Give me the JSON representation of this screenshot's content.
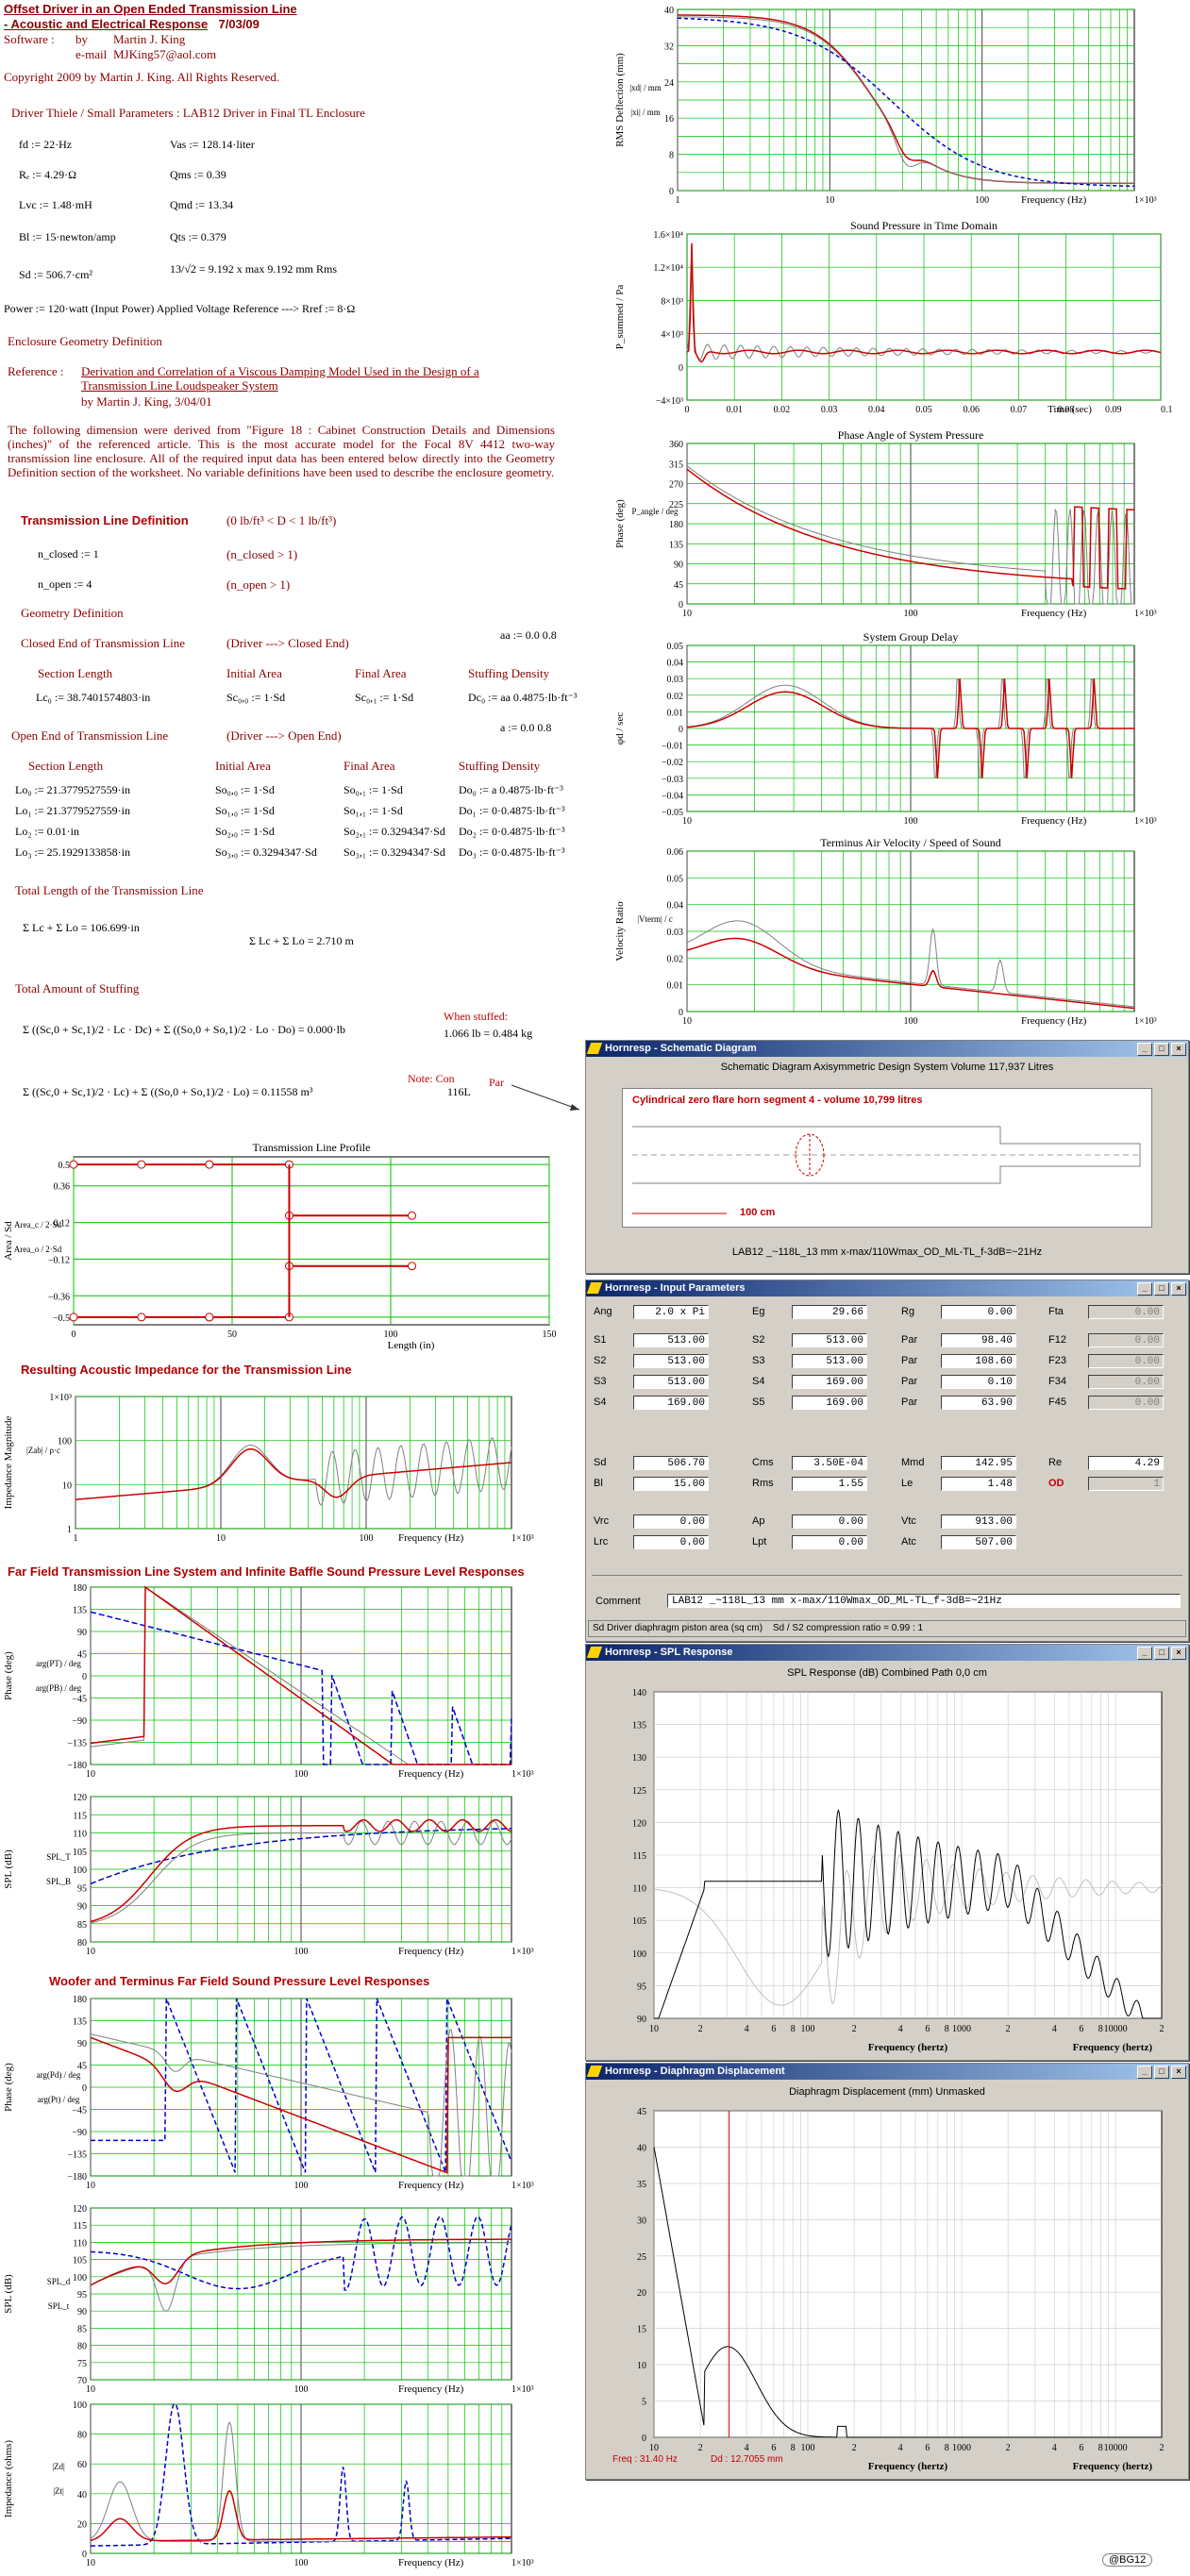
{
  "header": {
    "title_line1": "Offset Driver in an Open Ended Transmission Line",
    "title_line2": " - Acoustic and Electrical Response",
    "date": "7/03/09",
    "software_label": "Software :",
    "by": "by",
    "author": "Martin J. King",
    "email_label": "e-mail",
    "email": "MJKing57@aol.com",
    "copyright": "Copyright 2009 by Martin J. King. All Rights Reserved."
  },
  "driver": {
    "heading": "Driver Thiele / Small Parameters : LAB12   Driver in Final TL Enclosure",
    "left": [
      "fd := 22·Hz",
      "Rₑ := 4.29·Ω",
      "Lvc := 1.48·mH",
      "Bl := 15·newton/amp",
      "Sd := 506.7·cm²"
    ],
    "right": [
      "Vas := 128.14·liter",
      "Qms := 0.39",
      "Qmd := 13.34",
      "Qts := 0.379",
      "13/√2 = 9.192   x max 9.192 mm Rms"
    ],
    "power": "Power := 120·watt   (Input Power)   Applied Voltage Reference --->   Rref := 8·Ω"
  },
  "enclosure": {
    "heading": "Enclosure Geometry Definition",
    "reference_label": "Reference :",
    "reference_title": "Derivation and Correlation of a Viscous Damping Model Used in the Design of a Transmission Line Loudspeaker System",
    "reference_by": "by        Martin J. King,  3/04/01",
    "paragraph": "The following dimension were derived from \"Figure 18 : Cabinet Construction Details and Dimensions (inches)\" of the  referenced article.  This is the  most accurate model  for the Focal 8V 4412 two-way transmission  line enclosure.  All of the  required input  data has been entered below directly into the Geometry Definition  section of the  worksheet.  No  variable definitions have been  used to  describe the enclosure geometry."
  },
  "tl_def": {
    "heading": "Transmission Line Definition",
    "density": "(0 lb/ft³ < D < 1 lb/ft³)",
    "n_closed": "n_closed := 1",
    "n_closed_note": "(n_closed > 1)",
    "n_open": "n_open := 4",
    "n_open_note": "(n_open > 1)",
    "geom": "Geometry Definition",
    "closed_heading": "Closed End of Transmission Line",
    "closed_note": "(Driver ---> Closed End)",
    "aa1": "aa := 0.0      0.8",
    "cols": [
      "Section Length",
      "Initial Area",
      "Final Area",
      "Stuffing Density"
    ],
    "closed_row": [
      "Lc₀ := 38.7401574803·in",
      "Sc₀,₀ := 1·Sd",
      "Sc₀,₁ := 1·Sd",
      "Dc₀ := aa 0.4875·lb·ft⁻³"
    ],
    "open_heading": "Open End of Transmission Line",
    "open_note": "(Driver ---> Open End)",
    "aa2": "a := 0.0      0.8",
    "open_rows": [
      [
        "Lo₀ := 21.3779527559·in",
        "So₀,₀ := 1·Sd",
        "So₀,₁ := 1·Sd",
        "Do₀ := a 0.4875·lb·ft⁻³"
      ],
      [
        "Lo₁ := 21.3779527559·in",
        "So₁,₀ := 1·Sd",
        "So₁,₁ := 1·Sd",
        "Do₁ := 0·0.4875·lb·ft⁻³"
      ],
      [
        "Lo₂ := 0.01·in",
        "So₂,₀ := 1·Sd",
        "So₂,₁ := 0.3294347·Sd",
        "Do₂ := 0·0.4875·lb·ft⁻³"
      ],
      [
        "Lo₃ := 25.1929133858·in",
        "So₃,₀ := 0.3294347·Sd",
        "So₃,₁ := 0.3294347·Sd",
        "Do₃ := 0·0.4875·lb·ft⁻³"
      ]
    ],
    "total_len_heading": "Total Length of the Transmission Line",
    "total_len": "Σ Lc + Σ Lo = 106.699·in",
    "total_len_m": "Σ Lc + Σ Lo = 2.710 m",
    "stuff_heading": "Total Amount of Stuffing",
    "stuff_eq": "Σ ((Sc,0 + Sc,1)/2 · Lc · Dc) + Σ ((So,0 + So,1)/2 · Lo · Do) = 0.000·lb",
    "stuffed_label": "When stuffed:",
    "stuffed_val": "1.066 lb = 0.484 kg",
    "vol_eq": "Σ ((Sc,0 + Sc,1)/2 · Lc) + Σ ((So,0 + So,1)/2 · Lo) = 0.11558 m³",
    "vol_l": "116L",
    "note": "Note: Con",
    "par": "Par"
  },
  "sections": {
    "acoustic_impedance": "Resulting Acoustic Impedance for the Transmission Line",
    "far_field": "Far Field Transmission Line System and Infinite Baffle Sound Pressure Level Responses",
    "woofer_terminus": "Woofer and Terminus Far Field Sound Pressure Level Responses"
  },
  "charts": {
    "rms": {
      "title": "",
      "ylabel": "RMS Deflection (mm)",
      "xlabel": "Frequency (Hz)",
      "legend": [
        "|xd| / mm",
        "|xi| / mm"
      ],
      "yticks": [
        "40",
        "32",
        "24",
        "16",
        "8",
        "0"
      ],
      "xticks": [
        "1",
        "10",
        "100",
        "1×10³"
      ]
    },
    "time": {
      "title": "Sound Pressure in Time Domain",
      "ylabel": "P_summed / Pa",
      "xlabel": "Time (sec)",
      "yticks": [
        "1.6×10⁴",
        "1.2×10⁴",
        "8×10³",
        "4×10³",
        "0",
        "−4×10³"
      ],
      "xticks": [
        "0",
        "0.01",
        "0.02",
        "0.03",
        "0.04",
        "0.05",
        "0.06",
        "0.07",
        "0.08",
        "0.09",
        "0.1"
      ]
    },
    "phase": {
      "title": "Phase Angle of System Pressure",
      "ylabel": "Phase (deg)",
      "legend": "P_angle / deg",
      "xlabel": "Frequency (Hz)",
      "yticks": [
        "360",
        "315",
        "270",
        "225",
        "180",
        "135",
        "90",
        "45",
        "0"
      ],
      "xticks": [
        "10",
        "100",
        "1×10³"
      ]
    },
    "group": {
      "title": "System Group Delay",
      "ylabel": "φd / sec",
      "xlabel": "Frequency (Hz)",
      "yticks": [
        "0.05",
        "0.04",
        "0.03",
        "0.02",
        "0.01",
        "0",
        "−0.01",
        "−0.02",
        "−0.03",
        "−0.04",
        "−0.05"
      ],
      "xticks": [
        "10",
        "100",
        "1×10³"
      ]
    },
    "velocity": {
      "title": "Terminus Air Velocity / Speed of Sound",
      "ylabel": "Velocity Ratio",
      "legend": "|Vterm| / c",
      "xlabel": "Frequency (Hz)",
      "yticks": [
        "0.06",
        "0.05",
        "0.04",
        "0.03",
        "0.02",
        "0.01",
        "0"
      ],
      "xticks": [
        "10",
        "100",
        "1×10³"
      ]
    },
    "profile": {
      "title": "Transmission Line Profile",
      "ylabel": "Area / Sd",
      "legend": [
        "Area_c / 2·Sd",
        "Area_o / 2·Sd"
      ],
      "xlabel": "Length (in)",
      "yticks": [
        "0.5",
        "0.36",
        "0.12",
        "−0.12",
        "−0.36",
        "−0.5"
      ],
      "xticks": [
        "0",
        "50",
        "100",
        "150"
      ]
    },
    "impedance": {
      "title": "",
      "ylabel": "Impedance Magnitude",
      "legend": "|Zab| / ρ·c",
      "xlabel": "Frequency (Hz)",
      "yticks": [
        "1×10³",
        "100",
        "10",
        "1"
      ],
      "xticks": [
        "1",
        "10",
        "100",
        "1×10³"
      ]
    },
    "ff_phase": {
      "ylabel": "Phase (deg)",
      "legend": [
        "arg(PT) / deg",
        "arg(PB) / deg"
      ],
      "xlabel": "Frequency (Hz)",
      "yticks": [
        "180",
        "135",
        "90",
        "45",
        "0",
        "−45",
        "−90",
        "−135",
        "−180"
      ],
      "xticks": [
        "10",
        "100",
        "1×10³"
      ]
    },
    "ff_spl": {
      "ylabel": "SPL (dB)",
      "legend": [
        "SPL_T",
        "SPL_B"
      ],
      "xlabel": "Frequency (Hz)",
      "yticks": [
        "120",
        "115",
        "110",
        "105",
        "100",
        "95",
        "90",
        "85",
        "80"
      ],
      "xticks": [
        "10",
        "100",
        "1×10³"
      ]
    },
    "wt_phase": {
      "ylabel": "Phase (deg)",
      "legend": [
        "arg(Pd) / deg",
        "arg(Pt) / deg"
      ],
      "xlabel": "Frequency (Hz)",
      "yticks": [
        "180",
        "135",
        "90",
        "45",
        "0",
        "−45",
        "−90",
        "−135",
        "−180"
      ],
      "xticks": [
        "10",
        "100",
        "1×10³"
      ]
    },
    "wt_spl": {
      "ylabel": "SPL (dB)",
      "legend": [
        "SPL_d",
        "SPL_t"
      ],
      "xlabel": "Frequency (Hz)",
      "yticks": [
        "120",
        "115",
        "110",
        "105",
        "100",
        "95",
        "90",
        "85",
        "80",
        "75",
        "70"
      ],
      "xticks": [
        "10",
        "100",
        "1×10³"
      ]
    },
    "wt_imp": {
      "ylabel": "Impedance (ohms)",
      "legend": [
        "|Zd|",
        "|Zt|"
      ],
      "xlabel": "Frequency (Hz)",
      "yticks": [
        "100",
        "80",
        "60",
        "40",
        "20",
        "0"
      ],
      "xticks": [
        "10",
        "100",
        "1×10³"
      ]
    }
  },
  "hr_schematic": {
    "window_title": "Hornresp - Schematic Diagram",
    "subtitle": "Schematic Diagram   Axisymmetric Design   System Volume 117,937 Litres",
    "segment": "Cylindrical zero flare horn segment 4 - volume 10,799 litres",
    "scale": "100 cm",
    "caption": "LAB12 _~118L_13 mm x-max/110Wmax_OD_ML-TL_f-3dB=~21Hz"
  },
  "hr_input": {
    "window_title": "Hornresp - Input Parameters",
    "rows": [
      [
        [
          "Ang",
          "2.0 x Pi"
        ],
        [
          "Eg",
          "29.66"
        ],
        [
          "Rg",
          "0.00"
        ],
        [
          "Fta",
          "0.00"
        ]
      ],
      [
        [
          "S1",
          "513.00"
        ],
        [
          "S2",
          "513.00"
        ],
        [
          "Par",
          "98.40"
        ],
        [
          "F12",
          "0.00"
        ]
      ],
      [
        [
          "S2",
          "513.00"
        ],
        [
          "S3",
          "513.00"
        ],
        [
          "Par",
          "108.60"
        ],
        [
          "F23",
          "0.00"
        ]
      ],
      [
        [
          "S3",
          "513.00"
        ],
        [
          "S4",
          "169.00"
        ],
        [
          "Par",
          "0.10"
        ],
        [
          "F34",
          "0.00"
        ]
      ],
      [
        [
          "S4",
          "169.00"
        ],
        [
          "S5",
          "169.00"
        ],
        [
          "Par",
          "63.90"
        ],
        [
          "F45",
          "0.00"
        ]
      ],
      [
        [
          "Sd",
          "506.70"
        ],
        [
          "Cms",
          "3.50E-04"
        ],
        [
          "Mmd",
          "142.95"
        ],
        [
          "Re",
          "4.29"
        ]
      ],
      [
        [
          "Bl",
          "15.00"
        ],
        [
          "Rms",
          "1.55"
        ],
        [
          "Le",
          "1.48"
        ],
        [
          "OD",
          "1"
        ]
      ],
      [
        [
          "Vrc",
          "0.00"
        ],
        [
          "Ap",
          "0.00"
        ],
        [
          "Vtc",
          "913.00"
        ]
      ],
      [
        [
          "Lrc",
          "0.00"
        ],
        [
          "Lpt",
          "0.00"
        ],
        [
          "Atc",
          "507.00"
        ]
      ]
    ],
    "comment_label": "Comment",
    "comment": "LAB12 _~118L_13 mm x-max/110Wmax_OD_ML-TL_f-3dB=~21Hz",
    "status_left": "Sd   Driver diaphragm piston area  (sq cm)",
    "status_right": "Sd / S2 compression ratio = 0.99 : 1"
  },
  "hr_spl": {
    "window_title": "Hornresp - SPL Response",
    "subtitle": "SPL Response (dB)   Combined   Path 0,0 cm",
    "yticks": [
      "140",
      "135",
      "130",
      "125",
      "120",
      "115",
      "110",
      "105",
      "100",
      "95",
      "90"
    ],
    "xticks": [
      "10",
      "2",
      "4",
      "6",
      "8",
      "100",
      "2",
      "4",
      "6",
      "8",
      "1000",
      "2",
      "4",
      "6",
      "8",
      "10000",
      "2"
    ],
    "xlabel": "Frequency (hertz)"
  },
  "hr_disp": {
    "window_title": "Hornresp - Diaphragm Displacement",
    "subtitle": "Diaphragm Displacement (mm)   Unmasked",
    "yticks": [
      "45",
      "40",
      "35",
      "30",
      "25",
      "20",
      "15",
      "10",
      "5",
      "0"
    ],
    "xticks": [
      "10",
      "2",
      "4",
      "6",
      "8",
      "100",
      "2",
      "4",
      "6",
      "8",
      "1000",
      "2",
      "4",
      "6",
      "8",
      "10000",
      "2"
    ],
    "freq": "Freq : 31.40 Hz",
    "dd": "Dd : 12.7055 mm",
    "xlabel": "Frequency (hertz)"
  },
  "footer": "@BG12",
  "colors": {
    "red": "#cc0000",
    "gray": "#808080",
    "blue": "#0000cc",
    "grid": "#00bb00",
    "maroon": "#8b0000"
  }
}
